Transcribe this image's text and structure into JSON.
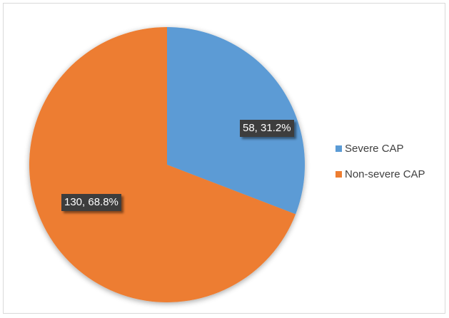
{
  "chart_data": {
    "type": "pie",
    "title": "",
    "categories": [
      "Severe CAP",
      "Non-severe CAP"
    ],
    "values": [
      58,
      130
    ],
    "percentages": [
      31.2,
      68.8
    ],
    "data_labels": [
      "58, 31.2%",
      "130, 68.8%"
    ],
    "colors": [
      "#5b9bd5",
      "#ed7d31"
    ],
    "legend_position": "right"
  }
}
